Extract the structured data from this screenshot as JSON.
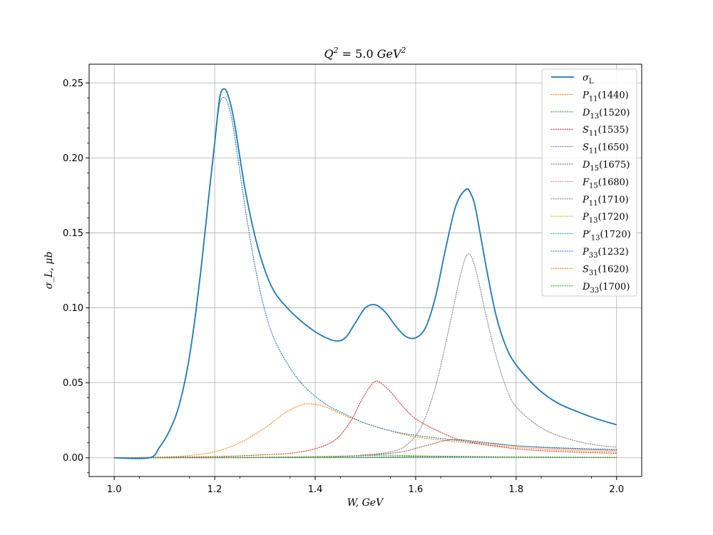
{
  "chart_data": {
    "type": "line",
    "title": "Q^2 = 5.0 GeV^2",
    "title_parts": {
      "var": "Q",
      "exp": "2",
      "eq": " = 5.0 ",
      "unit": "GeV",
      "unit_exp": "2"
    },
    "xlabel": "W, GeV",
    "ylabel": "σ_L, μb",
    "xlim": [
      0.95,
      2.05
    ],
    "ylim": [
      -0.0125,
      0.2625
    ],
    "xticks": [
      1.0,
      1.2,
      1.4,
      1.6,
      1.8,
      2.0
    ],
    "xtick_labels": [
      "1.0",
      "1.2",
      "1.4",
      "1.6",
      "1.8",
      "2.0"
    ],
    "yticks": [
      0.0,
      0.05,
      0.1,
      0.15,
      0.2,
      0.25
    ],
    "ytick_labels": [
      "0.00",
      "0.05",
      "0.10",
      "0.15",
      "0.20",
      "0.25"
    ],
    "grid": true,
    "legend_position": "top-right",
    "series": [
      {
        "name": "σ_L",
        "legend": {
          "sym": "σ",
          "sub": "L",
          "mass": ""
        },
        "color": "#1f77b4",
        "style": "solid",
        "x": [
          1.0,
          1.07,
          1.09,
          1.11,
          1.13,
          1.15,
          1.17,
          1.19,
          1.2,
          1.21,
          1.22,
          1.23,
          1.24,
          1.26,
          1.28,
          1.3,
          1.32,
          1.35,
          1.38,
          1.41,
          1.44,
          1.46,
          1.48,
          1.5,
          1.52,
          1.54,
          1.56,
          1.58,
          1.6,
          1.62,
          1.64,
          1.66,
          1.68,
          1.7,
          1.71,
          1.72,
          1.74,
          1.76,
          1.78,
          1.8,
          1.84,
          1.88,
          1.92,
          1.96,
          2.0
        ],
        "y": [
          0.0,
          0.0,
          0.007,
          0.018,
          0.036,
          0.068,
          0.118,
          0.18,
          0.21,
          0.24,
          0.246,
          0.238,
          0.222,
          0.18,
          0.148,
          0.125,
          0.11,
          0.098,
          0.089,
          0.082,
          0.078,
          0.08,
          0.09,
          0.1,
          0.102,
          0.097,
          0.088,
          0.081,
          0.08,
          0.087,
          0.108,
          0.14,
          0.168,
          0.179,
          0.176,
          0.165,
          0.128,
          0.095,
          0.074,
          0.062,
          0.047,
          0.037,
          0.031,
          0.026,
          0.022
        ]
      },
      {
        "name": "P11(1440)",
        "legend": {
          "sym": "P",
          "sub": "11",
          "mass": "(1440)"
        },
        "color": "#ff7f0e",
        "style": "dotted",
        "x": [
          1.0,
          1.1,
          1.15,
          1.2,
          1.25,
          1.3,
          1.34,
          1.37,
          1.39,
          1.42,
          1.46,
          1.5,
          1.55,
          1.6,
          1.7,
          1.8,
          1.9,
          2.0
        ],
        "y": [
          0.0,
          0.0005,
          0.0015,
          0.004,
          0.01,
          0.02,
          0.03,
          0.035,
          0.036,
          0.034,
          0.028,
          0.023,
          0.018,
          0.014,
          0.01,
          0.007,
          0.005,
          0.004
        ]
      },
      {
        "name": "D13(1520)",
        "legend": {
          "sym": "D",
          "sub": "13",
          "mass": "(1520)"
        },
        "color": "#2ca02c",
        "style": "dotted",
        "x": [
          1.0,
          1.2,
          1.4,
          1.5,
          1.55,
          1.6,
          1.7,
          1.8,
          2.0
        ],
        "y": [
          0.0,
          0.0002,
          0.0008,
          0.0015,
          0.0017,
          0.0013,
          0.0008,
          0.0005,
          0.0003
        ]
      },
      {
        "name": "S11(1535)",
        "legend": {
          "sym": "S",
          "sub": "11",
          "mass": "(1535)"
        },
        "color": "#d62728",
        "style": "dotted",
        "x": [
          1.0,
          1.2,
          1.3,
          1.35,
          1.4,
          1.44,
          1.47,
          1.49,
          1.51,
          1.52,
          1.53,
          1.55,
          1.57,
          1.6,
          1.65,
          1.7,
          1.8,
          1.9,
          2.0
        ],
        "y": [
          0.0,
          0.0008,
          0.002,
          0.003,
          0.006,
          0.012,
          0.024,
          0.037,
          0.048,
          0.051,
          0.05,
          0.044,
          0.036,
          0.026,
          0.017,
          0.011,
          0.006,
          0.004,
          0.003
        ]
      },
      {
        "name": "S11(1650)",
        "legend": {
          "sym": "S",
          "sub": "11",
          "mass": "(1650)"
        },
        "color": "#9467bd",
        "style": "dotted",
        "x": [
          1.0,
          1.4,
          1.55,
          1.62,
          1.65,
          1.7,
          1.8,
          2.0
        ],
        "y": [
          0.0,
          0.0002,
          0.0006,
          0.001,
          0.0011,
          0.0009,
          0.0005,
          0.0002
        ]
      },
      {
        "name": "D15(1675)",
        "legend": {
          "sym": "D",
          "sub": "15",
          "mass": "(1675)"
        },
        "color": "#8c564b",
        "style": "dotted",
        "x": [
          1.0,
          1.4,
          1.55,
          1.62,
          1.67,
          1.72,
          1.8,
          1.9,
          2.0
        ],
        "y": [
          0.0,
          0.0005,
          0.003,
          0.008,
          0.012,
          0.011,
          0.008,
          0.006,
          0.005
        ]
      },
      {
        "name": "F15(1680)",
        "legend": {
          "sym": "F",
          "sub": "15",
          "mass": "(1680)"
        },
        "color": "#e377c2",
        "style": "dotted",
        "x": [
          1.0,
          1.4,
          1.6,
          1.68,
          1.8,
          2.0
        ],
        "y": [
          0.0,
          0.0001,
          0.0004,
          0.0006,
          0.0003,
          0.0001
        ]
      },
      {
        "name": "P11(1710)",
        "legend": {
          "sym": "P",
          "sub": "11",
          "mass": "(1710)"
        },
        "color": "#7f7f7f",
        "style": "dotted",
        "x": [
          1.0,
          1.4,
          1.5,
          1.55,
          1.58,
          1.61,
          1.64,
          1.67,
          1.69,
          1.705,
          1.72,
          1.74,
          1.76,
          1.78,
          1.8,
          1.85,
          1.9,
          1.95,
          2.0
        ],
        "y": [
          0.0,
          0.0005,
          0.002,
          0.004,
          0.008,
          0.02,
          0.048,
          0.092,
          0.123,
          0.136,
          0.125,
          0.095,
          0.068,
          0.047,
          0.034,
          0.02,
          0.013,
          0.009,
          0.007
        ]
      },
      {
        "name": "P13(1720)",
        "legend": {
          "sym": "P",
          "sub": "13",
          "mass": "(1720)"
        },
        "color": "#bcbd22",
        "style": "dotted",
        "x": [
          1.0,
          1.5,
          1.72,
          2.0
        ],
        "y": [
          0.0,
          0.0002,
          0.0005,
          0.0002
        ]
      },
      {
        "name": "P'13(1720)",
        "legend": {
          "sym": "P′",
          "sub": "13",
          "mass": "(1720)"
        },
        "color": "#17becf",
        "style": "dotted",
        "x": [
          1.0,
          1.5,
          1.72,
          2.0
        ],
        "y": [
          0.0,
          0.0001,
          0.0003,
          0.0001
        ]
      },
      {
        "name": "P33(1232)",
        "legend": {
          "sym": "P",
          "sub": "33",
          "mass": "(1232)"
        },
        "color": "#1f77b4",
        "style": "dotted",
        "x": [
          1.0,
          1.07,
          1.09,
          1.11,
          1.13,
          1.15,
          1.17,
          1.19,
          1.2,
          1.21,
          1.22,
          1.23,
          1.24,
          1.26,
          1.28,
          1.3,
          1.32,
          1.35,
          1.38,
          1.42,
          1.46,
          1.5,
          1.55,
          1.6,
          1.7,
          1.8,
          1.9,
          2.0
        ],
        "y": [
          0.0,
          0.0,
          0.007,
          0.018,
          0.036,
          0.068,
          0.118,
          0.18,
          0.21,
          0.236,
          0.24,
          0.232,
          0.214,
          0.168,
          0.128,
          0.098,
          0.078,
          0.06,
          0.047,
          0.036,
          0.029,
          0.023,
          0.018,
          0.015,
          0.011,
          0.008,
          0.0065,
          0.0055
        ]
      },
      {
        "name": "S31(1620)",
        "legend": {
          "sym": "S",
          "sub": "31",
          "mass": "(1620)"
        },
        "color": "#ff7f0e",
        "style": "dotted",
        "x": [
          1.0,
          1.4,
          1.55,
          1.62,
          1.7,
          1.8,
          2.0
        ],
        "y": [
          0.0,
          0.0002,
          0.0006,
          0.0008,
          0.0006,
          0.0004,
          0.0002
        ]
      },
      {
        "name": "D33(1700)",
        "legend": {
          "sym": "D",
          "sub": "33",
          "mass": "(1700)"
        },
        "color": "#2ca02c",
        "style": "dotted",
        "x": [
          1.0,
          1.4,
          1.6,
          1.7,
          1.8,
          2.0
        ],
        "y": [
          0.0,
          0.0002,
          0.0005,
          0.0007,
          0.0005,
          0.0002
        ]
      }
    ]
  }
}
